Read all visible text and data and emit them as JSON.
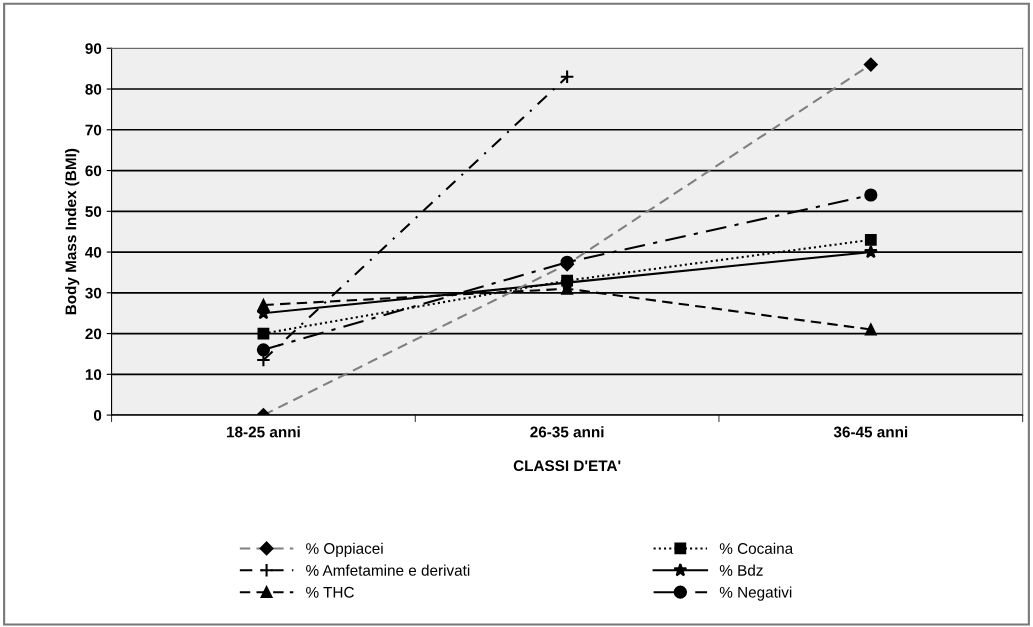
{
  "chart_data": {
    "type": "line",
    "xlabel": "CLASSI D'ETA'",
    "ylabel": "Body Mass Index (BMI)",
    "categories": [
      "18-25 anni",
      "26-35 anni",
      "36-45 anni"
    ],
    "ylim": [
      0,
      90
    ],
    "yticks": [
      0,
      10,
      20,
      30,
      40,
      50,
      60,
      70,
      80,
      90
    ],
    "grid": "y",
    "legend": "bottom",
    "series": [
      {
        "name": "% Oppiacei",
        "color": "#808080",
        "marker": "diamond",
        "line_style": "dashed",
        "values": [
          0,
          37,
          86
        ]
      },
      {
        "name": "% Cocaina",
        "color": "#000000",
        "marker": "square",
        "line_style": "dotted",
        "values": [
          20,
          33,
          43
        ]
      },
      {
        "name": "% Amfetamine e derivati",
        "color": "#000000",
        "marker": "cross",
        "line_style": "dashdot",
        "values": [
          13.5,
          83,
          null
        ]
      },
      {
        "name": "% Bdz",
        "color": "#000000",
        "marker": "star",
        "line_style": "solid",
        "values": [
          25,
          32.5,
          40
        ]
      },
      {
        "name": "% THC",
        "color": "#000000",
        "marker": "triangle",
        "line_style": "dashed",
        "values": [
          27,
          31,
          21
        ]
      },
      {
        "name": "% Negativi",
        "color": "#000000",
        "marker": "circle",
        "line_style": "longdashdot",
        "values": [
          16,
          37.5,
          54
        ]
      }
    ]
  }
}
